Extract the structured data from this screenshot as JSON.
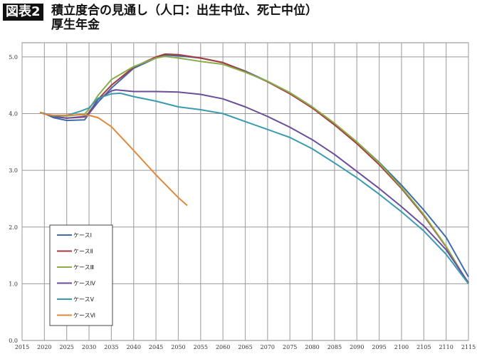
{
  "header": {
    "badge": "図表2",
    "title_line1": "積立度合の見通し（人口：出生中位、死亡中位）",
    "title_line2": "厚生年金"
  },
  "chart_data": {
    "type": "line",
    "title": "積立度合の見通し（人口：出生中位、死亡中位）厚生年金",
    "xlabel": "",
    "ylabel": "",
    "xlim": [
      2015,
      2115
    ],
    "ylim": [
      0,
      5.25
    ],
    "xticks": [
      2015,
      2020,
      2025,
      2030,
      2035,
      2040,
      2045,
      2050,
      2055,
      2060,
      2065,
      2070,
      2075,
      2080,
      2085,
      2090,
      2095,
      2100,
      2105,
      2110,
      2115
    ],
    "yticks": [
      "0.0",
      "1.0",
      "2.0",
      "3.0",
      "4.0",
      "5.0"
    ],
    "grid": true,
    "legend_placement": "bottom-left",
    "series": [
      {
        "name": "ケースⅠ",
        "color": "#3F6DAA",
        "x": [
          2019,
          2020,
          2022,
          2025,
          2029,
          2030,
          2032,
          2035,
          2040,
          2045,
          2047,
          2050,
          2055,
          2060,
          2065,
          2070,
          2075,
          2080,
          2085,
          2090,
          2095,
          2100,
          2105,
          2110,
          2115
        ],
        "y": [
          4.02,
          4.0,
          3.93,
          3.88,
          3.89,
          4.0,
          4.2,
          4.45,
          4.8,
          4.98,
          5.03,
          5.02,
          4.98,
          4.9,
          4.75,
          4.57,
          4.37,
          4.12,
          3.82,
          3.5,
          3.14,
          2.74,
          2.3,
          1.82,
          1.12
        ]
      },
      {
        "name": "ケースⅡ",
        "color": "#A83B3B",
        "x": [
          2019,
          2020,
          2022,
          2025,
          2029,
          2030,
          2032,
          2035,
          2040,
          2045,
          2047,
          2050,
          2055,
          2060,
          2065,
          2070,
          2075,
          2080,
          2085,
          2090,
          2095,
          2100,
          2105,
          2110,
          2115
        ],
        "y": [
          4.02,
          4.0,
          3.95,
          3.92,
          3.94,
          4.02,
          4.25,
          4.5,
          4.82,
          5.0,
          5.05,
          5.04,
          4.98,
          4.9,
          4.74,
          4.56,
          4.35,
          4.1,
          3.8,
          3.47,
          3.1,
          2.68,
          2.2,
          1.65,
          1.0
        ]
      },
      {
        "name": "ケースⅢ",
        "color": "#8AAE4B",
        "x": [
          2019,
          2020,
          2022,
          2025,
          2029,
          2030,
          2032,
          2035,
          2040,
          2045,
          2047,
          2050,
          2055,
          2060,
          2065,
          2070,
          2075,
          2080,
          2085,
          2090,
          2095,
          2100,
          2105,
          2110,
          2115
        ],
        "y": [
          4.02,
          4.0,
          3.96,
          3.96,
          3.99,
          4.08,
          4.32,
          4.6,
          4.83,
          4.98,
          5.01,
          4.98,
          4.92,
          4.87,
          4.73,
          4.57,
          4.37,
          4.12,
          3.83,
          3.5,
          3.13,
          2.7,
          2.22,
          1.66,
          1.0
        ]
      },
      {
        "name": "ケースⅣ",
        "color": "#6A4E9A",
        "x": [
          2019,
          2020,
          2022,
          2025,
          2029,
          2030,
          2032,
          2035,
          2036,
          2040,
          2045,
          2050,
          2055,
          2060,
          2065,
          2070,
          2075,
          2080,
          2085,
          2090,
          2095,
          2100,
          2105,
          2110,
          2115
        ],
        "y": [
          4.02,
          4.0,
          3.95,
          3.92,
          3.95,
          4.0,
          4.25,
          4.4,
          4.42,
          4.39,
          4.39,
          4.38,
          4.34,
          4.26,
          4.12,
          3.95,
          3.76,
          3.54,
          3.28,
          2.98,
          2.68,
          2.36,
          2.02,
          1.6,
          1.02
        ]
      },
      {
        "name": "ケースⅤ",
        "color": "#3A9BAE",
        "x": [
          2019,
          2020,
          2022,
          2025,
          2028,
          2030,
          2032,
          2035,
          2037,
          2040,
          2045,
          2050,
          2055,
          2060,
          2065,
          2070,
          2075,
          2080,
          2085,
          2090,
          2095,
          2100,
          2105,
          2110,
          2115
        ],
        "y": [
          4.02,
          4.0,
          3.96,
          3.97,
          4.04,
          4.1,
          4.27,
          4.35,
          4.36,
          4.3,
          4.22,
          4.12,
          4.07,
          4.0,
          3.86,
          3.72,
          3.58,
          3.38,
          3.13,
          2.87,
          2.58,
          2.27,
          1.93,
          1.52,
          1.0
        ]
      },
      {
        "name": "ケースⅥ",
        "color": "#E0893A",
        "x": [
          2019,
          2020,
          2022,
          2025,
          2028,
          2030,
          2032,
          2035,
          2040,
          2045,
          2050,
          2052
        ],
        "y": [
          4.02,
          3.99,
          3.97,
          3.97,
          3.98,
          3.97,
          3.93,
          3.77,
          3.35,
          2.92,
          2.52,
          2.38
        ]
      }
    ]
  }
}
